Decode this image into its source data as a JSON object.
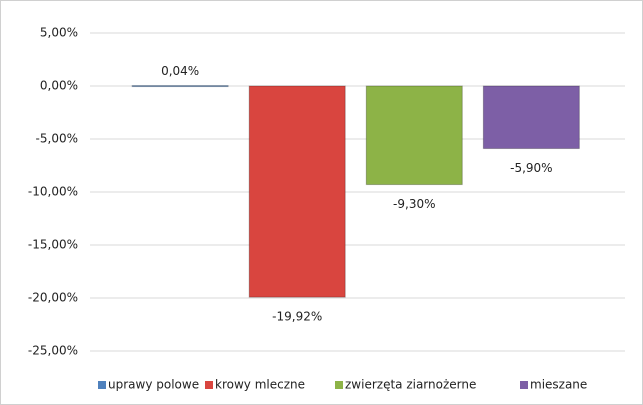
{
  "chart_data": {
    "type": "bar",
    "series": [
      {
        "name": "uprawy polowe",
        "color": "#4f81bd",
        "values": [
          0.04
        ],
        "value_labels": [
          "0,04%"
        ]
      },
      {
        "name": "krowy mleczne",
        "color": "#d9453f",
        "values": [
          -19.92
        ],
        "value_labels": [
          "-19,92%"
        ]
      },
      {
        "name": "zwierzęta ziarnożerne",
        "color": "#8db347",
        "values": [
          -9.3
        ],
        "value_labels": [
          "-9,30%"
        ]
      },
      {
        "name": "mieszane",
        "color": "#7d5fa6",
        "values": [
          -5.9
        ],
        "value_labels": [
          "-5,90%"
        ]
      }
    ],
    "ylim": [
      -25,
      5
    ],
    "yticks": [
      {
        "value": 5,
        "label": "5,00%"
      },
      {
        "value": 0,
        "label": "0,00%"
      },
      {
        "value": -5,
        "label": "-5,00%"
      },
      {
        "value": -10,
        "label": "-10,00%"
      },
      {
        "value": -15,
        "label": "-15,00%"
      },
      {
        "value": -20,
        "label": "-20,00%"
      },
      {
        "value": -25,
        "label": "-25,00%"
      }
    ],
    "grid": true,
    "legend": "bottom"
  }
}
